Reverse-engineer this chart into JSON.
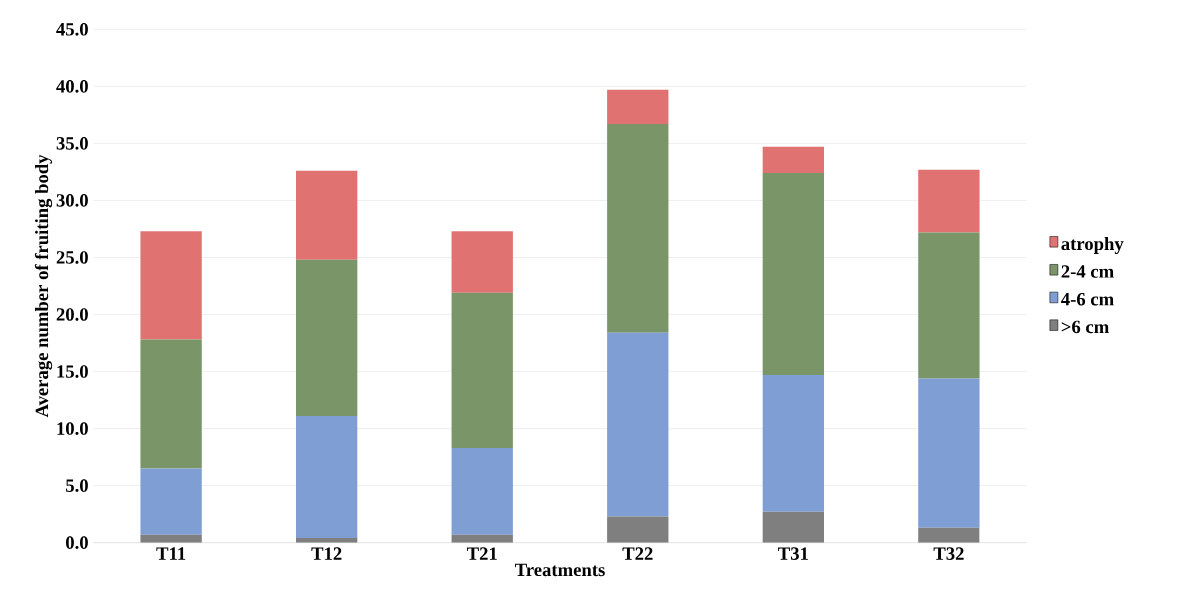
{
  "chart_data": {
    "type": "bar",
    "stacked": true,
    "xlabel": "Treatments",
    "ylabel": "Average number of fruiting body",
    "categories": [
      "T11",
      "T12",
      "T21",
      "T22",
      "T31",
      "T32"
    ],
    "series": [
      {
        "name": ">6 cm",
        "color": "#7f7f7f",
        "values": [
          0.7,
          0.4,
          0.7,
          2.3,
          2.7,
          1.3
        ]
      },
      {
        "name": "4-6 cm",
        "color": "#7f9fd4",
        "values": [
          5.8,
          10.7,
          7.6,
          16.1,
          12.0,
          13.1
        ]
      },
      {
        "name": "2-4 cm",
        "color": "#7a9668",
        "values": [
          11.3,
          13.7,
          13.6,
          18.3,
          17.7,
          12.8
        ]
      },
      {
        "name": "atrophy",
        "color": "#e07272",
        "values": [
          9.5,
          7.8,
          5.4,
          3.0,
          2.3,
          5.5
        ]
      }
    ],
    "ylim": [
      0,
      45
    ],
    "yticks": [
      {
        "value": 0,
        "label": "0.0"
      },
      {
        "value": 5,
        "label": "5.0"
      },
      {
        "value": 10,
        "label": "10.0"
      },
      {
        "value": 15,
        "label": "15.0"
      },
      {
        "value": 20,
        "label": "20.0"
      },
      {
        "value": 25,
        "label": "25.0"
      },
      {
        "value": 30,
        "label": "30.0"
      },
      {
        "value": 35,
        "label": "35.0"
      },
      {
        "value": 40,
        "label": "40.0"
      },
      {
        "value": 45,
        "label": "45.0"
      }
    ],
    "grid": "y",
    "legend": "right"
  }
}
